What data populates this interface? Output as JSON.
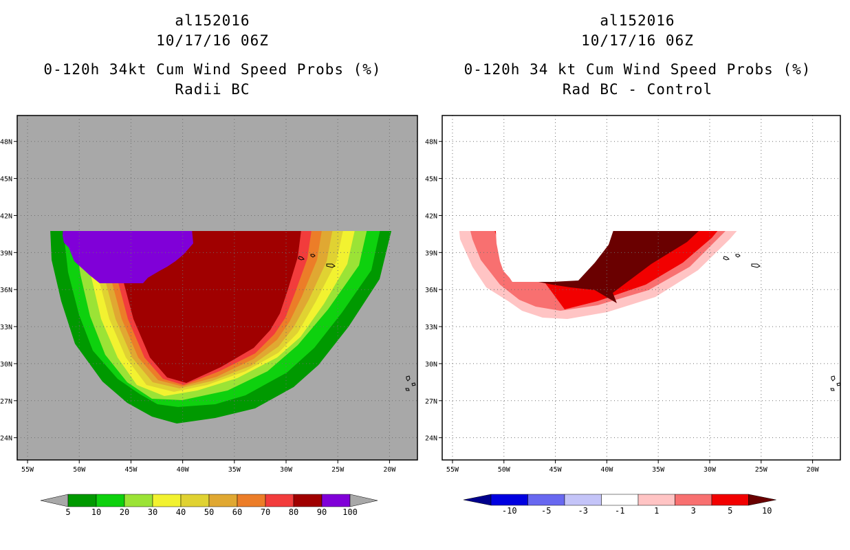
{
  "chart_data": [
    {
      "type": "heatmap",
      "title": [
        "al152016",
        "10/17/16 06Z",
        "0-120h 34kt Cum Wind Speed Probs (%)",
        "Radii BC"
      ],
      "xlabel": "",
      "ylabel": "",
      "x_ticks": [
        "55W",
        "50W",
        "45W",
        "40W",
        "35W",
        "30W",
        "25W",
        "20W"
      ],
      "y_ticks": [
        "24N",
        "27N",
        "30N",
        "33N",
        "36N",
        "39N",
        "42N",
        "45N",
        "48N"
      ],
      "x_values": [
        -55,
        -50,
        -45,
        -40,
        -35,
        -30,
        -25,
        -20
      ],
      "y_values": [
        24,
        27,
        30,
        33,
        36,
        39,
        42,
        45,
        48
      ],
      "xlim": [
        -56,
        -17.3
      ],
      "ylim": [
        22.2,
        50.1
      ],
      "grid": true,
      "background_color": "#a8a8a8",
      "colorbar": {
        "labels": [
          "5",
          "10",
          "20",
          "30",
          "40",
          "50",
          "60",
          "70",
          "80",
          "90",
          "100"
        ],
        "colors": [
          "#009900",
          "#0ed10e",
          "#9be336",
          "#f2f230",
          "#e0d232",
          "#e0a832",
          "#ec7d28",
          "#f23c3c",
          "#a00000",
          "#8000d8"
        ],
        "under_color": "#a8a8a8",
        "over_color": "#a8a8a8"
      },
      "series": [
        {
          "name": "5",
          "color": "#009900"
        },
        {
          "name": "10",
          "color": "#0ed10e"
        },
        {
          "name": "20",
          "color": "#9be336"
        },
        {
          "name": "30",
          "color": "#f2f230"
        },
        {
          "name": "40",
          "color": "#e0d232"
        },
        {
          "name": "50",
          "color": "#e0a832"
        },
        {
          "name": "60",
          "color": "#ec7d28"
        },
        {
          "name": "70",
          "color": "#f23c3c"
        },
        {
          "name": "80",
          "color": "#a00000"
        },
        {
          "name": "90",
          "color": "#8000d8"
        }
      ]
    },
    {
      "type": "heatmap",
      "title": [
        "al152016",
        "10/17/16 06Z",
        "0-120h 34 kt Cum Wind Speed Probs (%)",
        "Rad BC - Control"
      ],
      "xlabel": "",
      "ylabel": "",
      "x_ticks": [
        "55W",
        "50W",
        "45W",
        "40W",
        "35W",
        "30W",
        "25W",
        "20W"
      ],
      "y_ticks": [
        "24N",
        "27N",
        "30N",
        "33N",
        "36N",
        "39N",
        "42N",
        "45N",
        "48N"
      ],
      "x_values": [
        -55,
        -50,
        -45,
        -40,
        -35,
        -30,
        -25,
        -20
      ],
      "y_values": [
        24,
        27,
        30,
        33,
        36,
        39,
        42,
        45,
        48
      ],
      "xlim": [
        -56,
        -17.3
      ],
      "ylim": [
        22.2,
        50.1
      ],
      "grid": true,
      "background_color": "#ffffff",
      "colorbar": {
        "labels": [
          "-10",
          "-5",
          "-3",
          "-1",
          "1",
          "3",
          "5",
          "10"
        ],
        "colors": [
          "#0000e0",
          "#6868f0",
          "#c4c4f8",
          "#ffffff",
          "#ffc4c4",
          "#f87070",
          "#f20000"
        ],
        "under_color": "#00008c",
        "over_color": "#6a0000"
      },
      "series": [
        {
          "name": "1",
          "color": "#ffc4c4"
        },
        {
          "name": "3",
          "color": "#f87070"
        },
        {
          "name": "5",
          "color": "#f20000"
        },
        {
          "name": "10",
          "color": "#6a0000"
        }
      ]
    }
  ]
}
